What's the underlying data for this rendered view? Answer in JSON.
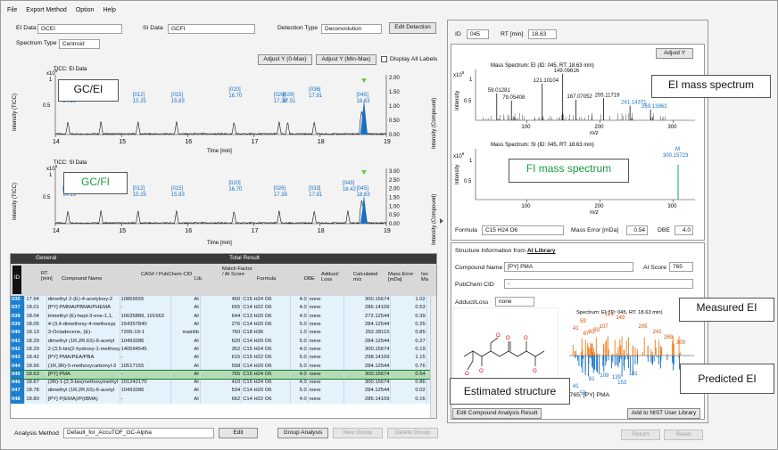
{
  "menu": [
    "File",
    "Export Method",
    "Option",
    "Help"
  ],
  "top": {
    "ei_label": "EI Data",
    "ei_value": "GCEI",
    "si_label": "SI Data",
    "si_value": "GCFI",
    "det_label": "Detection Type",
    "det_value": "Deconvolution",
    "edit_detection": "Edit Detection",
    "spec_label": "Spectrum Type",
    "spec_value": "Centroid",
    "adjust_y_0max": "Adjust Y (0-Max)",
    "adjust_y_minmax": "Adjust Y (Min-Max)",
    "display_all_labels": "Display All Labels"
  },
  "tic_ei": {
    "title": "TICC: EI Data",
    "overlay": "GC/EI",
    "ylabel_left": "Intensity (TICC)",
    "ylabel_right": "Intensity (Compound)",
    "xlabel": "Time [min]",
    "exp_left": "x10",
    "exp_sup": "6",
    "left_ticks": [
      "1",
      "0.5"
    ],
    "right_ticks": [
      "2.00",
      "1.50",
      "1.00",
      "0.50",
      "0.00"
    ],
    "x_ticks": [
      "14",
      "15",
      "16",
      "17",
      "18",
      "19"
    ],
    "peaks": [
      {
        "id": "[001]",
        "rt": "14.19"
      },
      {
        "id": "[007]",
        "rt": "14.69"
      },
      {
        "id": "[012]",
        "rt": "15.25"
      },
      {
        "id": "[015]",
        "rt": "15.83"
      },
      {
        "id": "[020]",
        "rt": "16.70"
      },
      {
        "id": "[026]",
        "rt": "17.38"
      },
      {
        "id": "[029]",
        "rt": "17.51"
      },
      {
        "id": "[036]",
        "rt": "17.91"
      },
      {
        "id": "[045]",
        "rt": "18.63"
      }
    ]
  },
  "tic_si": {
    "title": "TICC: SI Data",
    "overlay": "GC/FI",
    "ylabel_left": "Intensity (TICC)",
    "ylabel_right": "Intensity (Compound)",
    "xlabel": "Time [min]",
    "exp_left": "x10",
    "exp_sup": "6",
    "left_ticks": [
      "1",
      "0.5"
    ],
    "right_ticks": [
      "3.00",
      "2.50",
      "2.00",
      "1.50",
      "1.00",
      "0.50",
      "0.00"
    ],
    "x_ticks": [
      "14",
      "15",
      "16",
      "17",
      "18",
      "19"
    ],
    "peaks": [
      {
        "id": "[001]",
        "rt": "14.19"
      },
      {
        "id": "[007]",
        "rt": "14.69"
      },
      {
        "id": "[012]",
        "rt": "15.25"
      },
      {
        "id": "[015]",
        "rt": "15.83"
      },
      {
        "id": "[020]",
        "rt": "16.70"
      },
      {
        "id": "[026]",
        "rt": "17.38"
      },
      {
        "id": "[033]",
        "rt": "17.91"
      },
      {
        "id": "[043]",
        "rt": "18.42"
      },
      {
        "id": "[045]",
        "rt": "18.63"
      }
    ]
  },
  "table": {
    "group_general": "General",
    "group_total": "Total Result",
    "headers": [
      "ID",
      "RT [min]",
      "Compound Name",
      "CAS# / PubChem CID",
      "Lib.",
      "Match Factor / AI Score",
      "Formula",
      "DBE",
      "Adduct/ Loss",
      "Calculated m/z",
      "Mass Error [mDa]",
      "Iso Ma"
    ],
    "rows": [
      [
        "035",
        "17.94",
        "dimethyl 2-(E)-4-acetyloxy-2",
        "10859555",
        "AI",
        "450",
        "C15 H24 O6",
        "4.0",
        "none",
        "300.15674",
        "1.02",
        ""
      ],
      [
        "037",
        "18.01",
        "[PY] PMMA/PBMA/PHEMA",
        "-",
        "AI",
        "655",
        "C14 H22 O6",
        "4.0",
        "none",
        "286.14109",
        "0.53",
        ""
      ],
      [
        "038",
        "18.04",
        "trimethyl (E)-hept-3-ene-1,1,",
        "10635889, 101563",
        "AI",
        "644",
        "C13 H20 O6",
        "4.0",
        "none",
        "272.12544",
        "0.39",
        ""
      ],
      [
        "039",
        "18.05",
        "4-(3,4-dimethoxy-4-methoxyp",
        "154357840",
        "AI",
        "276",
        "C14 H20 O6",
        "5.0",
        "none",
        "284.12544",
        "0.25",
        ""
      ],
      [
        "040",
        "18.13",
        "3-Octadecene, (E)-",
        "7206-19-1",
        "mainlib",
        "760",
        "C18 H36",
        "1.0",
        "none",
        "252.28115",
        "0.85",
        ""
      ],
      [
        "041",
        "18.29",
        "dimethyl (1R,2R,6S)-6-acetyl",
        "10493286",
        "AI",
        "620",
        "C14 H20 O6",
        "5.0",
        "none",
        "284.12544",
        "0.27",
        ""
      ],
      [
        "042",
        "18.29",
        "2-(3,5-bis(2-hydroxy-1-methoxy",
        "140594545",
        "AI",
        "352",
        "C15 H24 O6",
        "4.0",
        "none",
        "300.15674",
        "0.19",
        ""
      ],
      [
        "043",
        "18.42",
        "[PY] PMA/PEA/PBA",
        "-",
        "AI",
        "615",
        "C15 H22 O6",
        "5.0",
        "none",
        "298.14109",
        "1.15",
        ""
      ],
      [
        "044",
        "18.56",
        "(1R,3R)-5-methoxycarbonyl-3",
        "10517155",
        "AI",
        "558",
        "C14 H20 O6",
        "5.0",
        "none",
        "284.12544",
        "0.76",
        ""
      ],
      [
        "045",
        "18.63",
        "[PY] PMA",
        "-",
        "AI",
        "765",
        "C15 H24 O6",
        "4.0",
        "none",
        "300.15674",
        "0.54",
        ""
      ],
      [
        "046",
        "18.67",
        "(2R)-1-[2,3-bis(methoxymethyl",
        "101242170",
        "AI",
        "410",
        "C15 H24 O6",
        "4.0",
        "none",
        "300.15674",
        "0.86",
        ""
      ],
      [
        "047",
        "18.78",
        "dimethyl (1R,2R,6S)-6-acetyl",
        "10493286",
        "AI",
        "534",
        "C14 H20 O6",
        "5.0",
        "none",
        "284.12544",
        "0.02",
        ""
      ],
      [
        "048",
        "18.80",
        "[PY] P(EMA)/P(iBMA)",
        "-",
        "AI",
        "662",
        "C14 H22 O6",
        "4.0",
        "none",
        "286.14109",
        "0.16",
        ""
      ]
    ],
    "selected_index": 9
  },
  "bottom": {
    "method_label": "Analysis Method",
    "method_value": "Default_for_AccuTOF_GC-Alpha",
    "edit": "Edit",
    "group_analysis": "Group Analysis",
    "new_group": "New Group",
    "delete_group": "Delete Group",
    "return": "Return",
    "reset": "Reset"
  },
  "right_top": {
    "id_label": "ID",
    "id_value": "045",
    "rt_label": "RT [min]",
    "rt_value": "18.63",
    "adjust_y": "Adjust Y"
  },
  "ms_ei": {
    "title": "Mass Spectrum: EI (ID: 045, RT: 18.63 min)",
    "overlay": "EI mass spectrum",
    "ylabel": "Intensity",
    "exp": "x10",
    "exp_sup": "5",
    "xlabel": "m/z",
    "y_ticks": [
      "1",
      "0.5"
    ],
    "x_ticks": [
      "100",
      "200",
      "300"
    ],
    "peaks": [
      {
        "mz": 59.0,
        "label": "59.01281"
      },
      {
        "mz": 79.05,
        "label": "79.05408"
      },
      {
        "mz": 121.1,
        "label": "121.10104"
      },
      {
        "mz": 149.1,
        "label": "149.09616"
      },
      {
        "mz": 167.07,
        "label": "167.07052"
      },
      {
        "mz": 205.12,
        "label": "205.11719"
      },
      {
        "mz": 241.14,
        "label": "241.14371"
      },
      {
        "mz": 269.14,
        "label": "269.13963"
      }
    ]
  },
  "ms_fi": {
    "title": "Mass Spectrum: SI (ID: 045, RT: 18.63 min)",
    "overlay": "FI mass spectrum",
    "ylabel": "Intensity",
    "exp": "x10",
    "exp_sup": "6",
    "xlabel": "m/z",
    "y_ticks": [
      "1",
      "0.5"
    ],
    "x_ticks": [
      "100",
      "200",
      "300"
    ],
    "ion_label": "M",
    "ion_mz": "300.15723"
  },
  "formula": {
    "label": "Formula",
    "value": "C15 H24 O6",
    "err_label": "Mass Error [mDa]",
    "err_value": "0.54",
    "dbe_label": "DBE",
    "dbe_value": "4.0"
  },
  "structure": {
    "header_prefix": "Structure Information from",
    "header_link": "AI Library",
    "cname_label": "Compound Name",
    "cname_value": "[PY] PMA",
    "ai_label": "AI Score",
    "ai_value": "765",
    "cid_label": "PubChem CID",
    "cid_value": "-",
    "adduct_label": "Adduct/Loss",
    "adduct_value": "none",
    "overlay_structure": "Estimated structure",
    "edit_result": "Edit Compound Analysis Result",
    "add_nist": "Add to NIST User Library"
  },
  "mirror": {
    "title": "Spectrum: EI (ID: 045, RT: 18.63 min)",
    "overlay_measured": "Measured EI",
    "overlay_predicted": "Predicted EI",
    "caption": "1, 765, [PY] PMA",
    "top_labels": [
      "59",
      "121",
      "149",
      "205",
      "241",
      "269",
      "300",
      "41",
      "67",
      "81",
      "93",
      "107"
    ],
    "bottom_labels": [
      "41",
      "59",
      "81",
      "109",
      "139",
      "153",
      "181"
    ]
  }
}
